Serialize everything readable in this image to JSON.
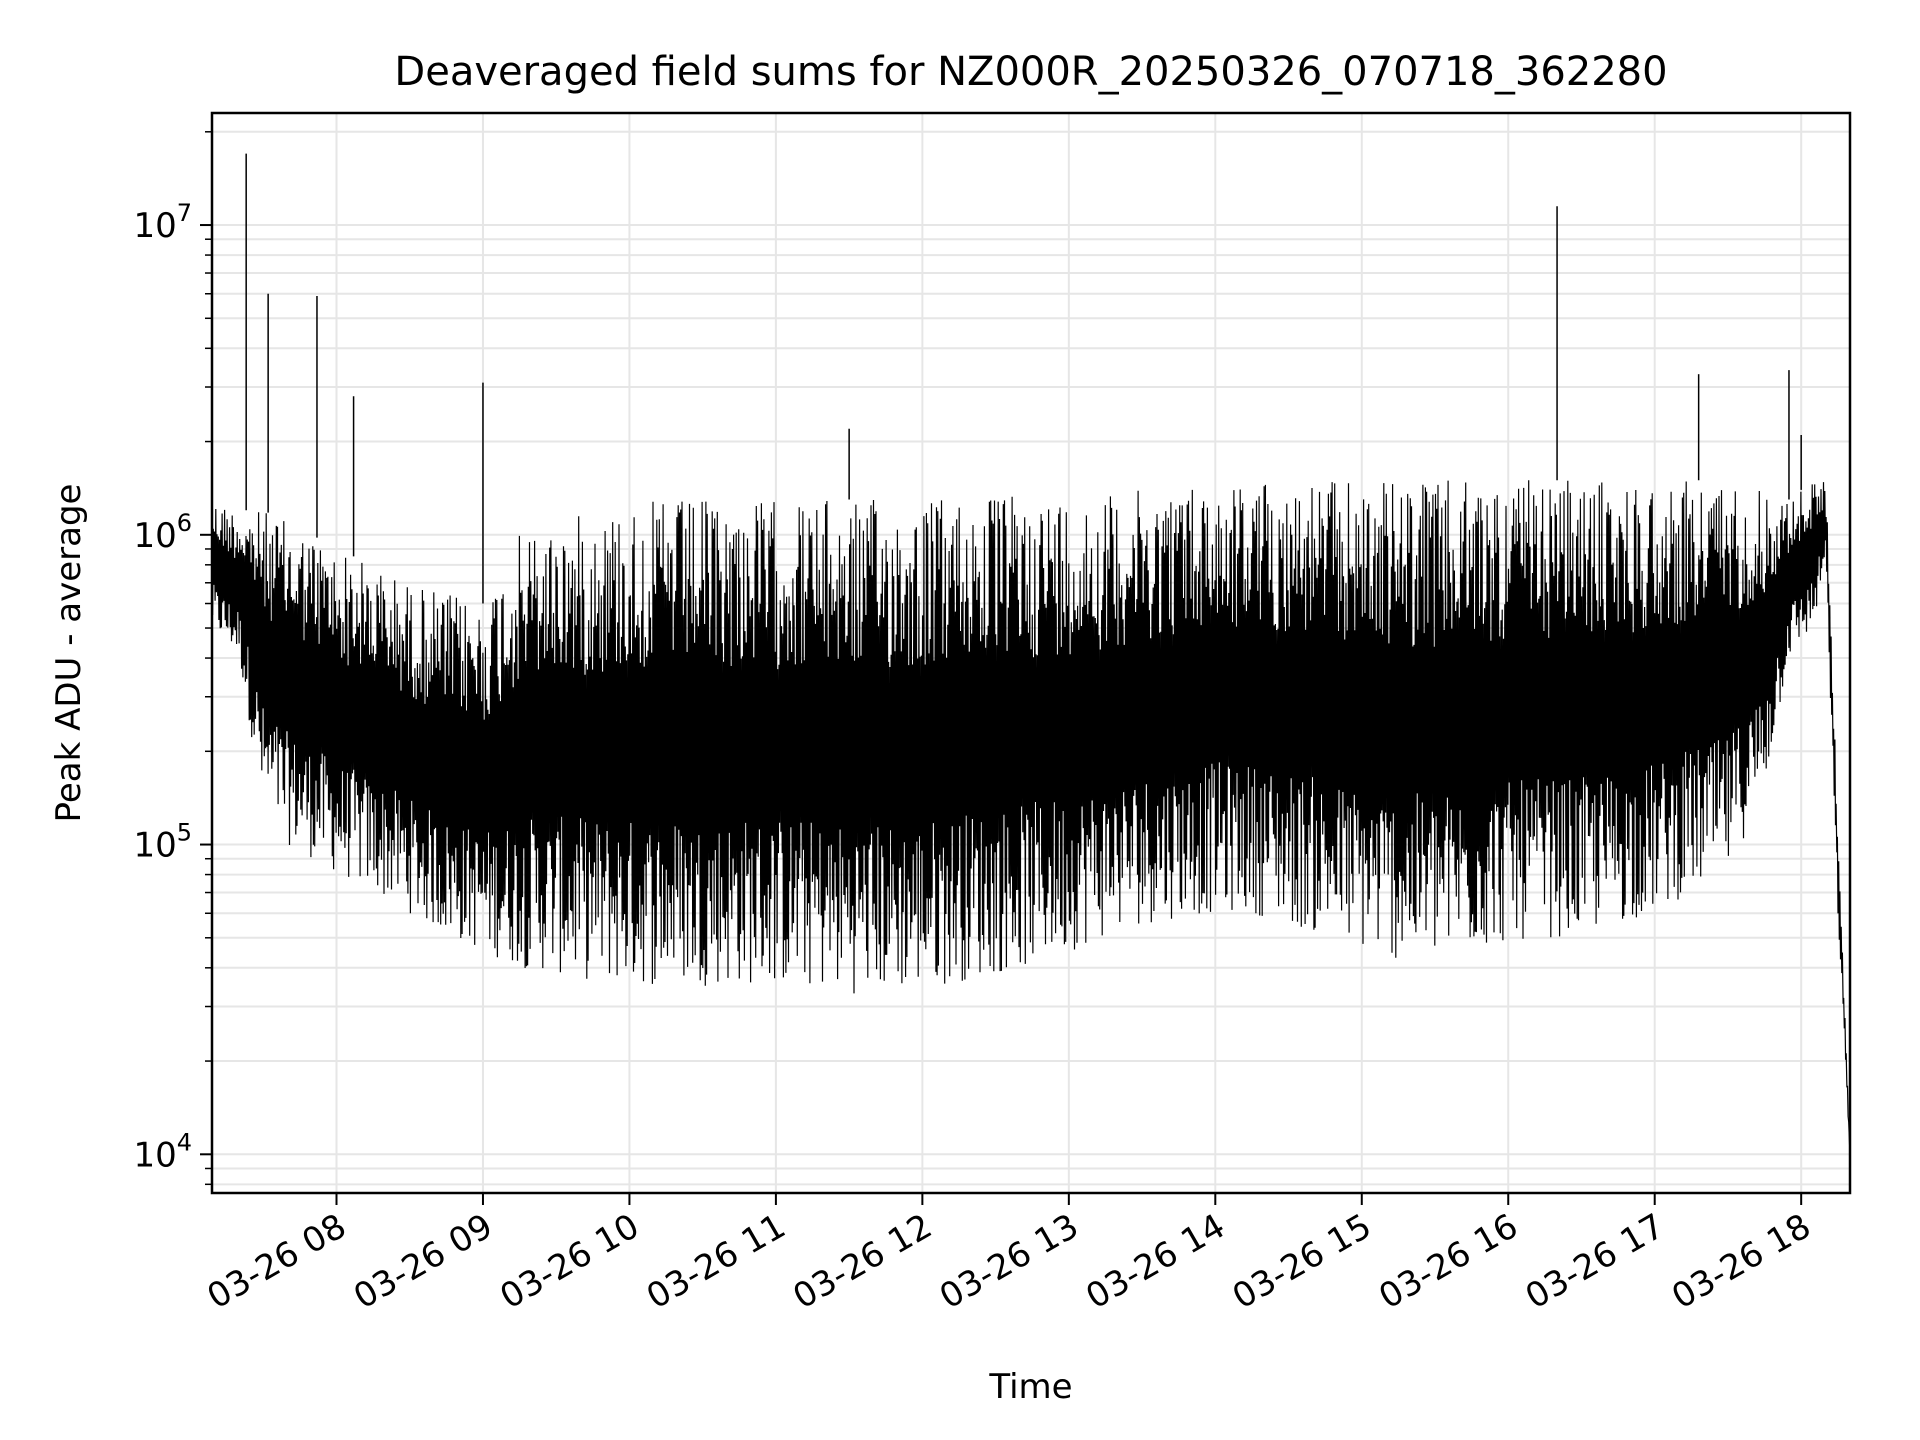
{
  "chart_data": {
    "type": "line",
    "title": "Deaveraged field sums for NZ000R_20250326_070718_362280",
    "xlabel": "Time",
    "ylabel": "Peak ADU - average",
    "yscale": "log",
    "ylim": [
      7500,
      23000000
    ],
    "xlim": [
      "03-26 07:09",
      "03-26 18:20"
    ],
    "grid": true,
    "line_color": "#000000",
    "grid_color": "#e6e6e6",
    "x_ticks": [
      "03-26 08",
      "03-26 09",
      "03-26 10",
      "03-26 11",
      "03-26 12",
      "03-26 13",
      "03-26 14",
      "03-26 15",
      "03-26 16",
      "03-26 17",
      "03-26 18"
    ],
    "y_ticks": [
      {
        "base": "10",
        "exp": "4",
        "value": 10000
      },
      {
        "base": "10",
        "exp": "5",
        "value": 100000
      },
      {
        "base": "10",
        "exp": "6",
        "value": 1000000
      },
      {
        "base": "10",
        "exp": "7",
        "value": 10000000
      }
    ],
    "series": [
      {
        "style": "dense oscillating line (envelope shown as upper/lower values)",
        "envelope": {
          "time": [
            "07:09",
            "07:20",
            "07:30",
            "07:40",
            "07:50",
            "08:00",
            "08:15",
            "08:30",
            "08:45",
            "09:00",
            "09:15",
            "09:30",
            "09:45",
            "10:00",
            "10:15",
            "10:30",
            "10:45",
            "11:00",
            "11:15",
            "11:30",
            "11:45",
            "12:00",
            "12:15",
            "12:30",
            "12:45",
            "13:00",
            "13:15",
            "13:30",
            "13:45",
            "14:00",
            "14:15",
            "14:30",
            "14:45",
            "15:00",
            "15:15",
            "15:30",
            "15:45",
            "16:00",
            "16:15",
            "16:30",
            "16:45",
            "17:00",
            "17:15",
            "17:30",
            "17:45",
            "17:55",
            "18:05",
            "18:10",
            "18:15",
            "18:20"
          ],
          "upper": [
            1300000,
            1200000,
            1200000,
            1100000,
            1000000,
            900000,
            800000,
            700000,
            650000,
            600000,
            1000000,
            1100000,
            1200000,
            1250000,
            1300000,
            1300000,
            1300000,
            1300000,
            1300000,
            1300000,
            1300000,
            1300000,
            1350000,
            1350000,
            1350000,
            1350000,
            1350000,
            1400000,
            1450000,
            1500000,
            1500000,
            1500000,
            1500000,
            1500000,
            1500000,
            1500000,
            1500000,
            1500000,
            1500000,
            1500000,
            1500000,
            1500000,
            1500000,
            1500000,
            1400000,
            1300000,
            1500000,
            1600000,
            120000,
            10000
          ],
          "lower": [
            500000,
            400000,
            130000,
            100000,
            90000,
            80000,
            70000,
            60000,
            50000,
            45000,
            40000,
            38000,
            36000,
            35000,
            35000,
            35000,
            35000,
            35000,
            34000,
            33000,
            33000,
            34000,
            36000,
            38000,
            40000,
            45000,
            50000,
            55000,
            58000,
            60000,
            60000,
            55000,
            50000,
            45000,
            42000,
            42000,
            45000,
            48000,
            50000,
            50000,
            55000,
            60000,
            70000,
            80000,
            150000,
            400000,
            500000,
            800000,
            60000,
            10000
          ]
        },
        "spikes": [
          {
            "time": "07:23",
            "value": 17000000
          },
          {
            "time": "07:32",
            "value": 6000000
          },
          {
            "time": "07:52",
            "value": 5900000
          },
          {
            "time": "08:07",
            "value": 2800000
          },
          {
            "time": "09:00",
            "value": 3100000
          },
          {
            "time": "11:30",
            "value": 2200000
          },
          {
            "time": "16:20",
            "value": 11500000
          },
          {
            "time": "17:18",
            "value": 3300000
          },
          {
            "time": "17:55",
            "value": 3400000
          },
          {
            "time": "18:00",
            "value": 2100000
          }
        ]
      }
    ]
  }
}
